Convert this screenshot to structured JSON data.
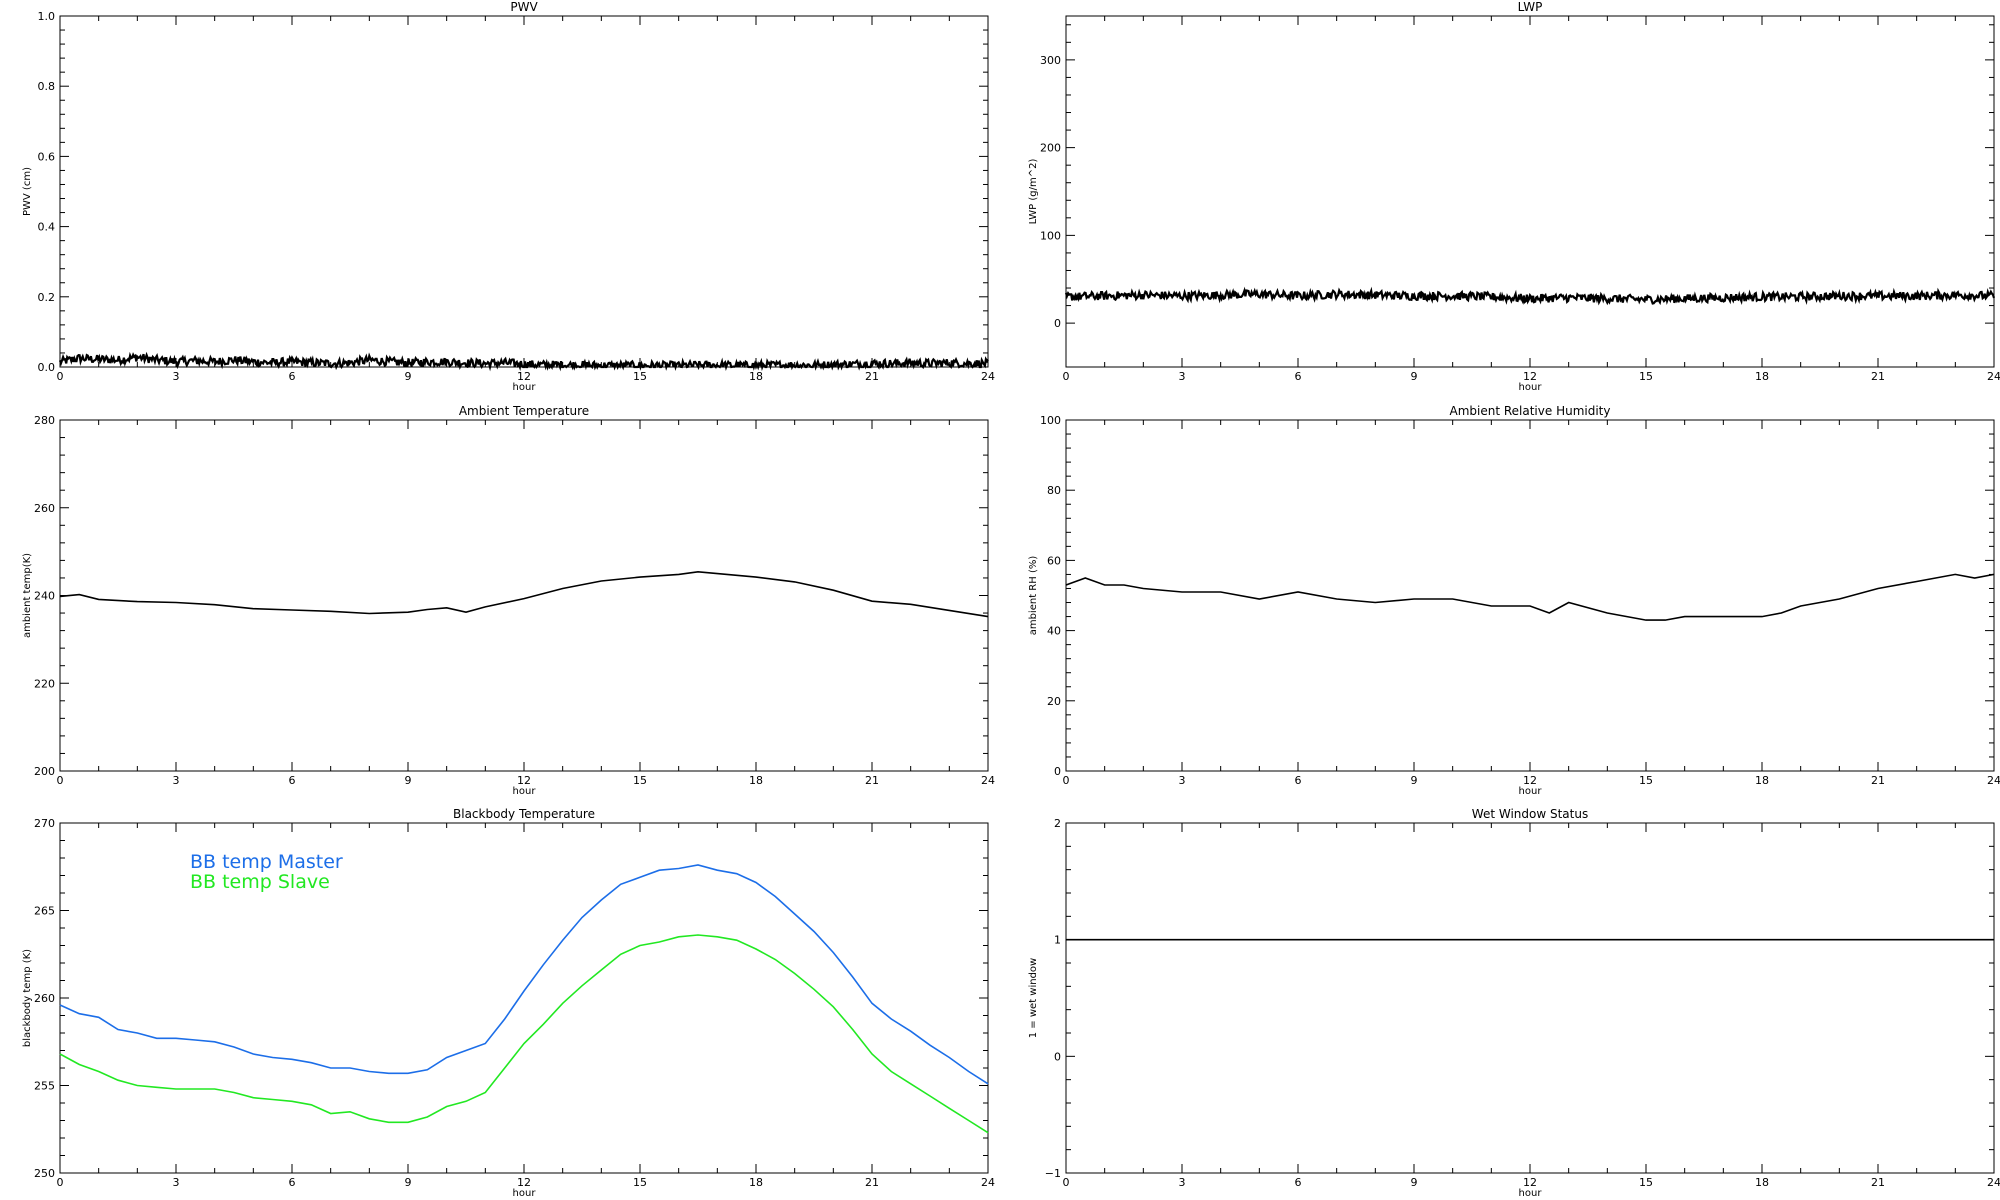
{
  "chart_data": [
    {
      "type": "line",
      "title": "PWV",
      "xlabel": "hour",
      "ylabel": "PWV (cm)",
      "xlim": [
        0,
        24
      ],
      "ylim": [
        0,
        1.0
      ],
      "xticks": [
        0,
        3,
        6,
        9,
        12,
        15,
        18,
        21,
        24
      ],
      "yticks": [
        0.0,
        0.2,
        0.4,
        0.6,
        0.8,
        1.0
      ],
      "ytick_labels": [
        "0.0",
        "0.2",
        "0.4",
        "0.6",
        "0.8",
        "1.0"
      ],
      "grid": false,
      "series": [
        {
          "color": "#000000",
          "style": "noisy-band",
          "x": [
            0,
            0.5,
            1,
            1.5,
            2,
            2.5,
            3,
            3.5,
            4,
            4.5,
            5,
            5.5,
            6,
            6.5,
            7,
            7.5,
            8,
            8.5,
            9,
            9.5,
            10,
            10.5,
            11,
            11.5,
            12,
            12.5,
            13,
            13.5,
            14,
            14.5,
            15,
            15.5,
            16,
            16.5,
            17,
            17.5,
            18,
            18.5,
            19,
            19.5,
            20,
            20.5,
            21,
            21.5,
            22,
            22.5,
            23,
            23.5,
            24
          ],
          "values": [
            0.015,
            0.025,
            0.022,
            0.02,
            0.028,
            0.02,
            0.015,
            0.018,
            0.015,
            0.02,
            0.015,
            0.012,
            0.015,
            0.012,
            0.01,
            0.012,
            0.02,
            0.015,
            0.012,
            0.015,
            0.015,
            0.012,
            0.01,
            0.012,
            0.008,
            0.006,
            0.006,
            0.005,
            0.004,
            0.004,
            0.004,
            0.004,
            0.004,
            0.005,
            0.005,
            0.004,
            0.004,
            0.005,
            0.005,
            0.005,
            0.006,
            0.008,
            0.01,
            0.01,
            0.012,
            0.01,
            0.012,
            0.01,
            0.01
          ]
        }
      ]
    },
    {
      "type": "line",
      "title": "LWP",
      "xlabel": "hour",
      "ylabel": "LWP (g/m^2)",
      "xlim": [
        0,
        24
      ],
      "ylim": [
        -50,
        350
      ],
      "xticks": [
        0,
        3,
        6,
        9,
        12,
        15,
        18,
        21,
        24
      ],
      "yticks": [
        0,
        100,
        200,
        300
      ],
      "grid": false,
      "series": [
        {
          "color": "#000000",
          "style": "noisy-band",
          "x": [
            0,
            1,
            2,
            3,
            4,
            5,
            6,
            7,
            8,
            9,
            10,
            11,
            12,
            13,
            14,
            15,
            16,
            17,
            18,
            19,
            20,
            21,
            22,
            23,
            24
          ],
          "values": [
            30,
            31,
            32,
            31,
            32,
            33,
            31,
            33,
            32,
            31,
            31,
            30,
            28,
            29,
            28,
            27,
            28,
            29,
            30,
            30,
            31,
            31,
            31,
            32,
            31
          ]
        }
      ]
    },
    {
      "type": "line",
      "title": "Ambient Temperature",
      "xlabel": "hour",
      "ylabel": "ambient temp(K)",
      "xlim": [
        0,
        24
      ],
      "ylim": [
        200,
        280
      ],
      "xticks": [
        0,
        3,
        6,
        9,
        12,
        15,
        18,
        21,
        24
      ],
      "yticks": [
        200,
        220,
        240,
        260,
        280
      ],
      "grid": false,
      "series": [
        {
          "color": "#000000",
          "x": [
            0,
            0.5,
            1,
            2,
            3,
            4,
            5,
            6,
            7,
            8,
            9,
            9.5,
            10,
            10.5,
            11,
            12,
            13,
            14,
            15,
            16,
            16.5,
            17,
            18,
            19,
            20,
            21,
            22,
            23,
            24
          ],
          "values": [
            239.8,
            240.2,
            239.1,
            238.6,
            238.4,
            237.9,
            237.0,
            236.7,
            236.4,
            235.9,
            236.2,
            236.8,
            237.2,
            236.2,
            237.4,
            239.3,
            241.6,
            243.3,
            244.2,
            244.8,
            245.4,
            245.0,
            244.2,
            243.1,
            241.2,
            238.7,
            238.0,
            236.6,
            235.2
          ]
        }
      ]
    },
    {
      "type": "line",
      "title": "Ambient Relative Humidity",
      "xlabel": "hour",
      "ylabel": "ambient RH (%)",
      "xlim": [
        0,
        24
      ],
      "ylim": [
        0,
        100
      ],
      "xticks": [
        0,
        3,
        6,
        9,
        12,
        15,
        18,
        21,
        24
      ],
      "yticks": [
        0,
        20,
        40,
        60,
        80,
        100
      ],
      "grid": false,
      "series": [
        {
          "color": "#000000",
          "x": [
            0,
            0.5,
            1,
            1.5,
            2,
            3,
            4,
            5,
            6,
            7,
            8,
            9,
            10,
            11,
            12,
            12.5,
            13,
            14,
            15,
            15.5,
            16,
            17,
            18,
            18.5,
            19,
            20,
            21,
            22,
            23,
            23.5,
            24
          ],
          "values": [
            53,
            55,
            53,
            53,
            52,
            51,
            51,
            49,
            51,
            49,
            48,
            49,
            49,
            47,
            47,
            45,
            48,
            45,
            43,
            43,
            44,
            44,
            44,
            45,
            47,
            49,
            52,
            54,
            56,
            55,
            56
          ]
        }
      ]
    },
    {
      "type": "line",
      "title": "Blackbody Temperature",
      "xlabel": "hour",
      "ylabel": "blackbody temp (K)",
      "xlim": [
        0,
        24
      ],
      "ylim": [
        250,
        270
      ],
      "xticks": [
        0,
        3,
        6,
        9,
        12,
        15,
        18,
        21,
        24
      ],
      "yticks": [
        250,
        255,
        260,
        265,
        270
      ],
      "grid": false,
      "legend": "top-left",
      "series": [
        {
          "name": "BB temp Master",
          "color": "#1c6ee8",
          "x": [
            0,
            0.5,
            1,
            1.5,
            2,
            2.5,
            3,
            3.5,
            4,
            4.5,
            5,
            5.5,
            6,
            6.5,
            7,
            7.5,
            8,
            8.5,
            9,
            9.5,
            10,
            10.5,
            11,
            11.5,
            12,
            12.5,
            13,
            13.5,
            14,
            14.5,
            15,
            15.5,
            16,
            16.5,
            17,
            17.5,
            18,
            18.5,
            19,
            19.5,
            20,
            20.5,
            21,
            21.5,
            22,
            22.5,
            23,
            23.5,
            24
          ],
          "values": [
            259.6,
            259.1,
            258.9,
            258.2,
            258.0,
            257.7,
            257.7,
            257.6,
            257.5,
            257.2,
            256.8,
            256.6,
            256.5,
            256.3,
            256.0,
            256.0,
            255.8,
            255.7,
            255.7,
            255.9,
            256.6,
            257.0,
            257.4,
            258.8,
            260.4,
            261.9,
            263.3,
            264.6,
            265.6,
            266.5,
            266.9,
            267.3,
            267.4,
            267.6,
            267.3,
            267.1,
            266.6,
            265.8,
            264.8,
            263.8,
            262.6,
            261.2,
            259.7,
            258.8,
            258.1,
            257.3,
            256.6,
            255.8,
            255.1
          ]
        },
        {
          "name": "BB temp Slave",
          "color": "#22e822",
          "x": [
            0,
            0.5,
            1,
            1.5,
            2,
            2.5,
            3,
            3.5,
            4,
            4.5,
            5,
            5.5,
            6,
            6.5,
            7,
            7.5,
            8,
            8.5,
            9,
            9.5,
            10,
            10.5,
            11,
            11.5,
            12,
            12.5,
            13,
            13.5,
            14,
            14.5,
            15,
            15.5,
            16,
            16.5,
            17,
            17.5,
            18,
            18.5,
            19,
            19.5,
            20,
            20.5,
            21,
            21.5,
            22,
            22.5,
            23,
            23.5,
            24
          ],
          "values": [
            256.8,
            256.2,
            255.8,
            255.3,
            255.0,
            254.9,
            254.8,
            254.8,
            254.8,
            254.6,
            254.3,
            254.2,
            254.1,
            253.9,
            253.4,
            253.5,
            253.1,
            252.9,
            252.9,
            253.2,
            253.8,
            254.1,
            254.6,
            256.0,
            257.4,
            258.5,
            259.7,
            260.7,
            261.6,
            262.5,
            263.0,
            263.2,
            263.5,
            263.6,
            263.5,
            263.3,
            262.8,
            262.2,
            261.4,
            260.5,
            259.5,
            258.2,
            256.8,
            255.8,
            255.1,
            254.4,
            253.7,
            253.0,
            252.3
          ]
        }
      ]
    },
    {
      "type": "line",
      "title": "Wet Window Status",
      "xlabel": "hour",
      "ylabel": "1 = wet window",
      "xlim": [
        0,
        24
      ],
      "ylim": [
        -1,
        2
      ],
      "xticks": [
        0,
        3,
        6,
        9,
        12,
        15,
        18,
        21,
        24
      ],
      "yticks": [
        -1,
        0,
        1,
        2
      ],
      "grid": false,
      "series": [
        {
          "color": "#000000",
          "x": [
            0,
            24
          ],
          "values": [
            1,
            1
          ]
        }
      ]
    }
  ]
}
